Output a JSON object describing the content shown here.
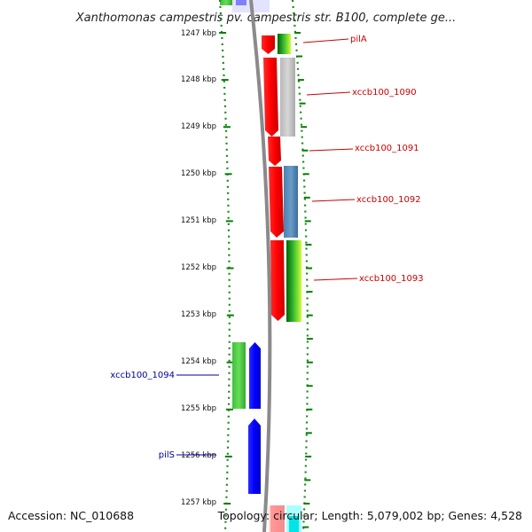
{
  "header": {
    "title": "Xanthomonas campestris pv. campestris str. B100, complete ge..."
  },
  "axis": {
    "unit": "kbp",
    "ticks": [
      {
        "label": "1247 kbp",
        "kbp": 1247
      },
      {
        "label": "1248 kbp",
        "kbp": 1248
      },
      {
        "label": "1249 kbp",
        "kbp": 1249
      },
      {
        "label": "1250 kbp",
        "kbp": 1250
      },
      {
        "label": "1251 kbp",
        "kbp": 1251
      },
      {
        "label": "1252 kbp",
        "kbp": 1252
      },
      {
        "label": "1253 kbp",
        "kbp": 1253
      },
      {
        "label": "1254 kbp",
        "kbp": 1254
      },
      {
        "label": "1255 kbp",
        "kbp": 1255
      },
      {
        "label": "1256 kbp",
        "kbp": 1256
      },
      {
        "label": "1257 kbp",
        "kbp": 1257
      }
    ]
  },
  "genes": [
    {
      "name": "pilA",
      "strand": "forward",
      "color": "#cc0000"
    },
    {
      "name": "xccb100_1090",
      "strand": "forward",
      "color": "#cc0000"
    },
    {
      "name": "xccb100_1091",
      "strand": "forward",
      "color": "#cc0000"
    },
    {
      "name": "xccb100_1092",
      "strand": "forward",
      "color": "#cc0000"
    },
    {
      "name": "xccb100_1093",
      "strand": "forward",
      "color": "#cc0000"
    },
    {
      "name": "xccb100_1094",
      "strand": "reverse",
      "color": "#000099"
    },
    {
      "name": "pilS",
      "strand": "reverse",
      "color": "#000099"
    }
  ],
  "footer": {
    "accession": "Accession: NC_010688",
    "summary": "Topology: circular; Length: 5,079,002 bp; Genes: 4,528"
  },
  "colors": {
    "forward_cds": "#ff0000",
    "reverse_cds": "#0000ff",
    "backbone": "#888888",
    "tick": "#008000"
  }
}
